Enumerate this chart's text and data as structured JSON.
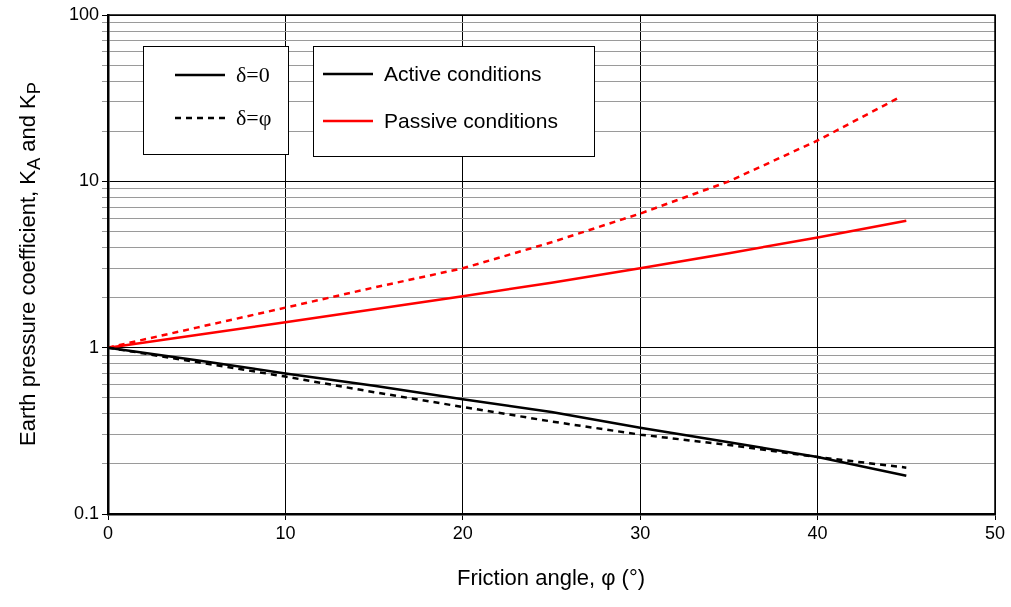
{
  "chart_data": {
    "type": "line",
    "xlabel": "Friction angle, φ (°)",
    "ylabel": "Earth pressure coefficient, K$_{A}$ and K$_{P}$",
    "xlim": [
      0,
      50
    ],
    "xticks": [
      0,
      10,
      20,
      30,
      40,
      50
    ],
    "ylim": [
      0.1,
      100
    ],
    "yticks": [
      0.1,
      {
        "value": 0.2,
        "label": null
      },
      {
        "value": 0.3,
        "label": null
      },
      {
        "value": 0.4,
        "label": null
      },
      {
        "value": 0.5,
        "label": null
      },
      {
        "value": 0.6,
        "label": null
      },
      {
        "value": 0.7,
        "label": null
      },
      {
        "value": 0.8,
        "label": null
      },
      {
        "value": 0.9,
        "label": null
      },
      1,
      {
        "value": 2,
        "label": null
      },
      {
        "value": 3,
        "label": null
      },
      {
        "value": 4,
        "label": null
      },
      {
        "value": 5,
        "label": null
      },
      {
        "value": 6,
        "label": null
      },
      {
        "value": 7,
        "label": null
      },
      {
        "value": 8,
        "label": null
      },
      {
        "value": 9,
        "label": null
      },
      10,
      {
        "value": 20,
        "label": null
      },
      {
        "value": 30,
        "label": null
      },
      {
        "value": 40,
        "label": null
      },
      {
        "value": 50,
        "label": null
      },
      {
        "value": 60,
        "label": null
      },
      {
        "value": 70,
        "label": null
      },
      {
        "value": 80,
        "label": null
      },
      {
        "value": 90,
        "label": null
      },
      100
    ],
    "log": "y",
    "grid": true,
    "marker": "none",
    "annotations": [
      "δ=0",
      "δ=φ",
      "Active conditions",
      "Passive conditions"
    ],
    "series": [
      {
        "color": "#000000",
        "line_style": "solid",
        "x": [
          0,
          5,
          10,
          15,
          20,
          25,
          30,
          35,
          40,
          45
        ],
        "values": [
          1,
          0.84,
          0.7,
          0.59,
          0.49,
          0.41,
          0.33,
          0.27,
          0.22,
          0.17
        ]
      },
      {
        "color": "#000000",
        "line_style": "dashed",
        "x": [
          0,
          5,
          10,
          15,
          20,
          25,
          30,
          35,
          40,
          45
        ],
        "values": [
          1,
          0.82,
          0.67,
          0.54,
          0.44,
          0.36,
          0.3,
          0.26,
          0.22,
          0.19
        ]
      },
      {
        "color": "#ff0000",
        "line_style": "solid",
        "x": [
          0,
          5,
          10,
          15,
          20,
          25,
          30,
          35,
          40,
          45
        ],
        "values": [
          1,
          1.19,
          1.42,
          1.7,
          2.04,
          2.46,
          3,
          3.7,
          4.6,
          5.8
        ]
      },
      {
        "color": "#ff0000",
        "line_style": "dashed",
        "x": [
          0,
          5,
          10,
          15,
          20,
          25,
          30,
          35,
          40,
          44.5
        ],
        "values": [
          1,
          1.32,
          1.74,
          2.3,
          3,
          4.3,
          6.4,
          10,
          17.6,
          31.5
        ]
      }
    ]
  }
}
